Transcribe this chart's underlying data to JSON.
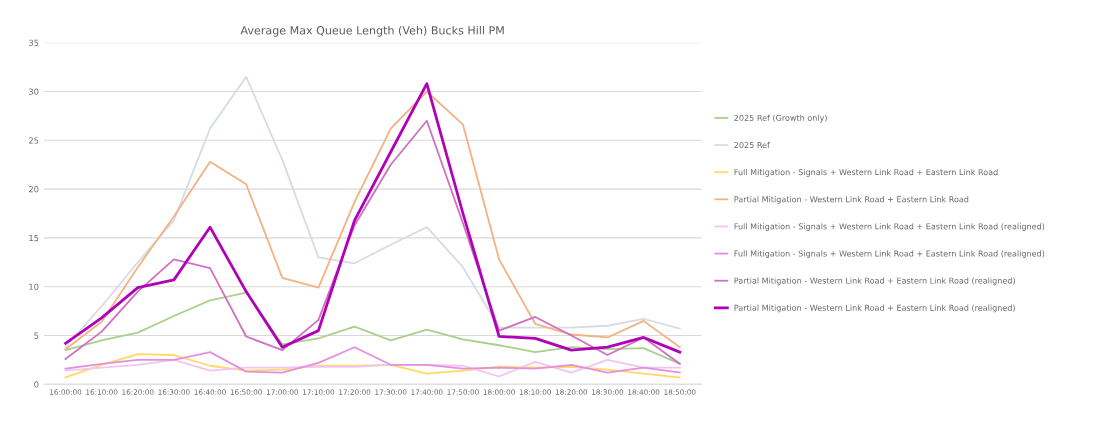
{
  "chart_data": {
    "type": "line",
    "title": "Average Max Queue Length (Veh) Bucks Hill PM",
    "categories": [
      "16:00:00",
      "16:10:00",
      "16:20:00",
      "16:30:00",
      "16:40:00",
      "16:50:00",
      "17:00:00",
      "17:10:00",
      "17:20:00",
      "17:30:00",
      "17:40:00",
      "17:50:00",
      "18:00:00",
      "18:10:00",
      "18:20:00",
      "18:30:00",
      "18:40:00",
      "18:50:00"
    ],
    "series": [
      {
        "name": "2025 Ref (Growth only)",
        "color": "#a9d18e",
        "values": [
          3.5,
          4.5,
          5.3,
          7.0,
          8.6,
          9.4,
          4.1,
          4.7,
          5.9,
          4.5,
          5.6,
          4.6,
          4.0,
          3.3,
          3.8,
          3.6,
          3.7,
          2.1
        ]
      },
      {
        "name": "2025 Ref",
        "color": "#d6dce5",
        "values": [
          3.8,
          8.0,
          12.5,
          16.8,
          26.2,
          31.5,
          23.0,
          13.0,
          12.4,
          14.3,
          16.1,
          12.0,
          5.8,
          5.8,
          5.8,
          6.0,
          6.7,
          5.7
        ]
      },
      {
        "name": "Full Mitigation - Signals + Western Link Road + Eastern Link Road",
        "color": "#ffd966",
        "values": [
          0.7,
          2.0,
          3.1,
          3.0,
          1.9,
          1.4,
          1.5,
          1.9,
          1.9,
          2.0,
          1.1,
          1.4,
          1.8,
          1.7,
          1.8,
          1.5,
          1.1,
          0.7
        ]
      },
      {
        "name": "Partial Mitigation - Western Link Road + Eastern Link Road",
        "color": "#f4b183",
        "values": [
          3.6,
          6.4,
          12.0,
          17.2,
          22.8,
          20.5,
          10.9,
          9.9,
          18.7,
          26.2,
          30.0,
          26.6,
          12.8,
          6.2,
          5.1,
          4.8,
          6.5,
          3.8
        ]
      },
      {
        "name": "Full Mitigation - Signals + Western Link Road + Eastern Link Road (realigned)",
        "color": "#f0c6f0",
        "values": [
          1.4,
          1.7,
          2.0,
          2.5,
          1.4,
          1.7,
          1.7,
          1.8,
          1.8,
          2.0,
          2.0,
          1.9,
          0.8,
          2.3,
          1.2,
          2.5,
          1.7,
          1.7
        ]
      },
      {
        "name": "Full Mitigation - Signals + Western Link Road + Eastern Link Road (realigned)",
        "color": "#e48fe0",
        "values": [
          1.6,
          2.1,
          2.5,
          2.5,
          3.3,
          1.3,
          1.2,
          2.2,
          3.8,
          2.0,
          2.0,
          1.6,
          1.7,
          1.6,
          2.0,
          1.2,
          1.7,
          1.2
        ]
      },
      {
        "name": "Partial Mitigation - Western Link Road + Eastern Link Road (realigned)",
        "color": "#d070c0",
        "values": [
          2.6,
          5.4,
          9.5,
          12.8,
          11.9,
          4.9,
          3.5,
          6.6,
          16.3,
          22.5,
          27.0,
          16.5,
          5.5,
          6.9,
          5.0,
          3.0,
          4.8,
          2.1
        ]
      },
      {
        "name": "Partial Mitigation - Western Link Road + Eastern Link Road (realigned)",
        "color": "#b000b8",
        "values": [
          4.2,
          6.8,
          9.9,
          10.7,
          16.1,
          9.5,
          3.8,
          5.5,
          16.8,
          23.8,
          30.8,
          17.5,
          4.9,
          4.7,
          3.5,
          3.8,
          4.8,
          3.3
        ]
      }
    ],
    "ylim": [
      0,
      35
    ],
    "yticks": [
      0,
      5,
      10,
      15,
      20,
      25,
      30,
      35
    ],
    "grid": "y",
    "legend": "right",
    "marker": "none",
    "line_style": "solid"
  }
}
